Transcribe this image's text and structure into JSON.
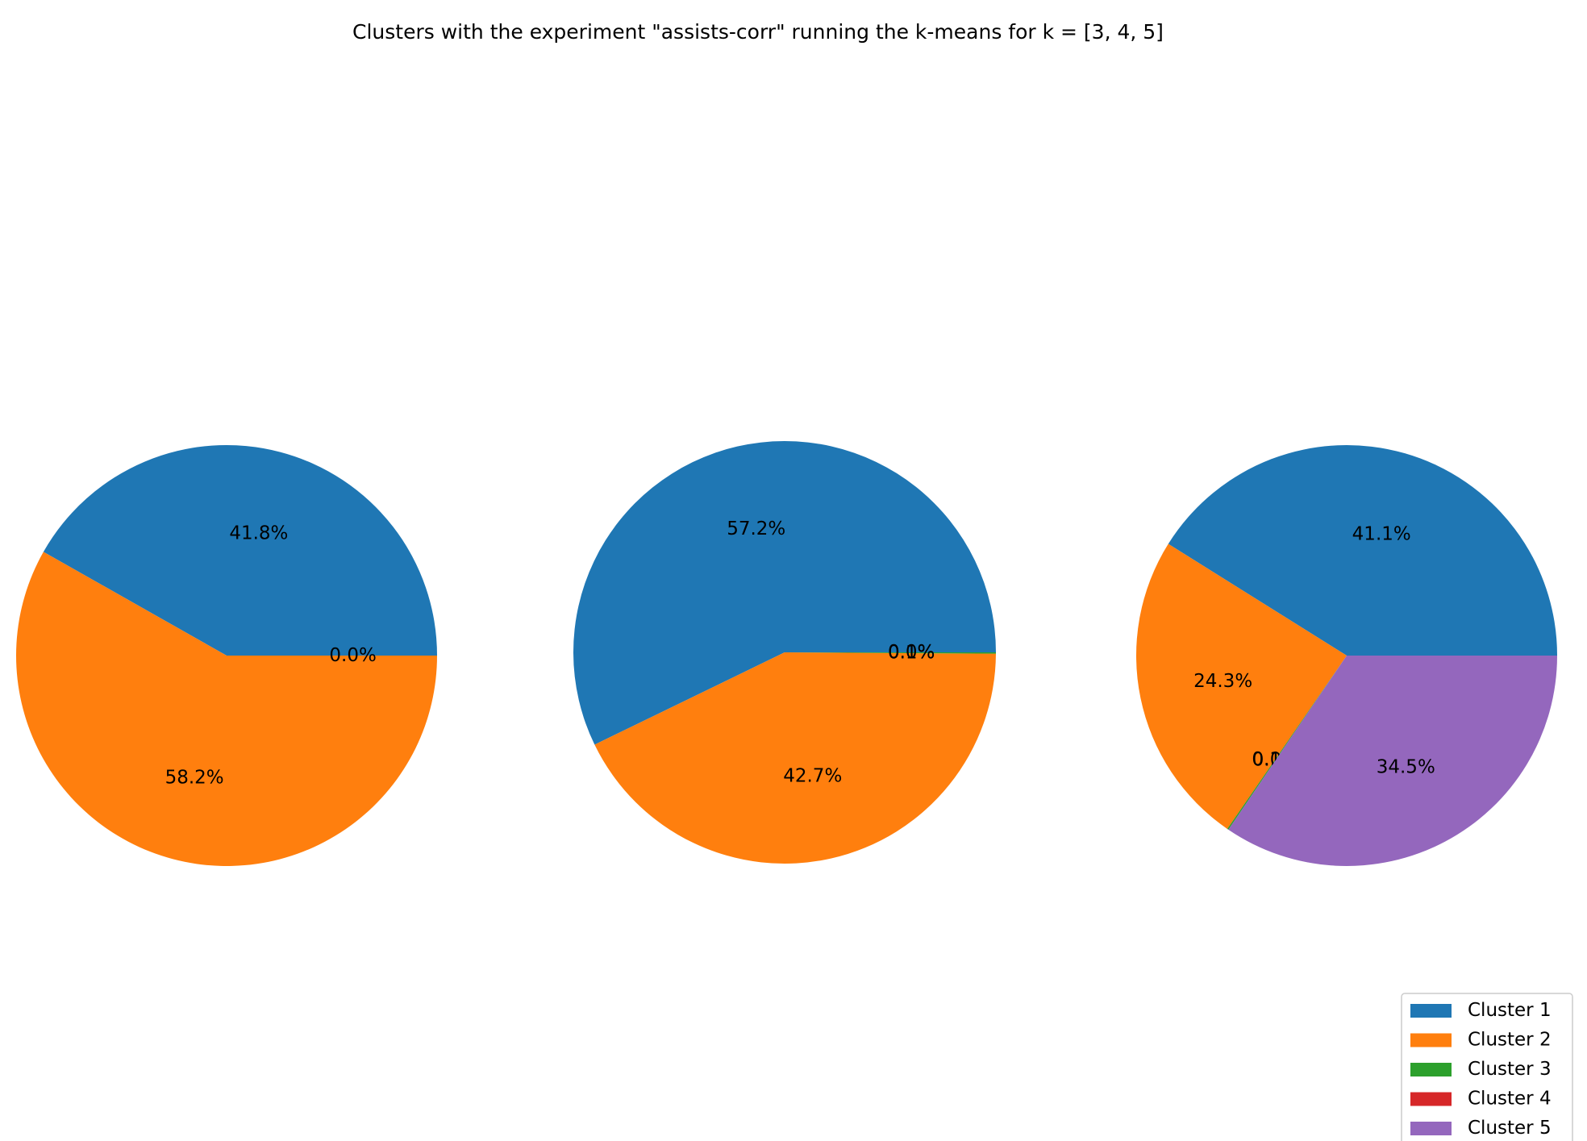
{
  "chart_data": {
    "type": "pie",
    "title": "Clusters with the experiment \"assists-corr\" running the k-means for k = [3, 4, 5]",
    "legend": {
      "placement": "bottom-right",
      "entries": [
        {
          "name": "Cluster 1",
          "color": "#1f77b4"
        },
        {
          "name": "Cluster 2",
          "color": "#ff7f0e"
        },
        {
          "name": "Cluster 3",
          "color": "#2ca02c"
        },
        {
          "name": "Cluster 4",
          "color": "#d62728"
        },
        {
          "name": "Cluster 5",
          "color": "#9467bd"
        }
      ]
    },
    "pies": [
      {
        "slices": [
          {
            "cluster": "Cluster 1",
            "value": 41.8,
            "label": "41.8%"
          },
          {
            "cluster": "Cluster 2",
            "value": 58.2,
            "label": "58.2%"
          },
          {
            "cluster": "Cluster 3",
            "value": 0.0,
            "label": "0.0%"
          }
        ]
      },
      {
        "slices": [
          {
            "cluster": "Cluster 1",
            "value": 57.2,
            "label": "57.2%"
          },
          {
            "cluster": "Cluster 2",
            "value": 42.7,
            "label": "42.7%"
          },
          {
            "cluster": "Cluster 3",
            "value": 0.1,
            "label": "0.1%"
          },
          {
            "cluster": "Cluster 4",
            "value": 0.0,
            "label": "0.0%"
          }
        ]
      },
      {
        "slices": [
          {
            "cluster": "Cluster 1",
            "value": 41.1,
            "label": "41.1%"
          },
          {
            "cluster": "Cluster 2",
            "value": 24.3,
            "label": "24.3%"
          },
          {
            "cluster": "Cluster 3",
            "value": 0.1,
            "label": "0.1%"
          },
          {
            "cluster": "Cluster 4",
            "value": 0.0,
            "label": "0.0%"
          },
          {
            "cluster": "Cluster 5",
            "value": 34.5,
            "label": "34.5%"
          }
        ]
      }
    ]
  }
}
